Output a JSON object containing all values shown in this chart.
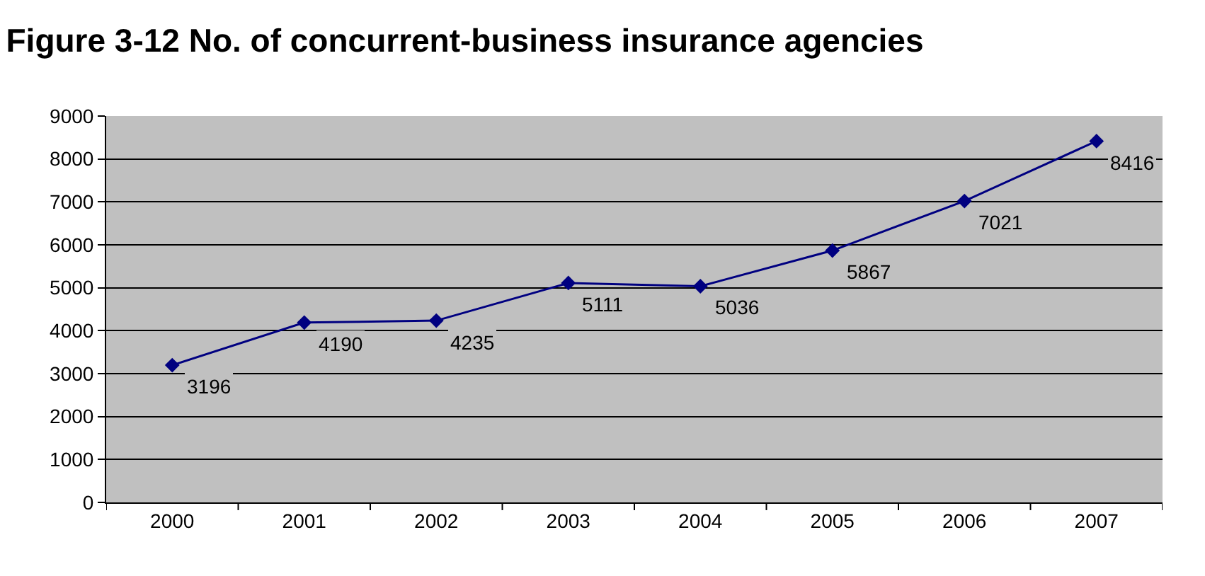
{
  "chart_data": {
    "type": "line",
    "title": "Figure 3-12 No. of concurrent-business insurance agencies",
    "categories": [
      "2000",
      "2001",
      "2002",
      "2003",
      "2004",
      "2005",
      "2006",
      "2007"
    ],
    "series": [
      {
        "color": "#000080",
        "values": [
          3196,
          4190,
          4235,
          5111,
          5036,
          5867,
          7021,
          8416
        ]
      }
    ],
    "ylim": [
      0,
      9000
    ],
    "yticks": [
      0,
      1000,
      2000,
      3000,
      4000,
      5000,
      6000,
      7000,
      8000,
      9000
    ],
    "grid": "y",
    "legend": false,
    "marker": "diamond",
    "line_style": "solid",
    "data_labels": true
  }
}
